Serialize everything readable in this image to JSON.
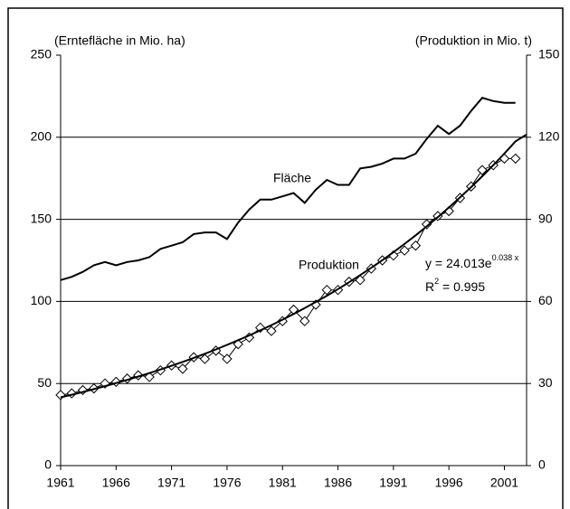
{
  "chart_data": {
    "type": "line",
    "y_label": "(Erntefläche in Mio. ha)",
    "y2_label": "(Produktion in Mio. t)",
    "x": [
      1961,
      1962,
      1963,
      1964,
      1965,
      1966,
      1967,
      1968,
      1969,
      1970,
      1971,
      1972,
      1973,
      1974,
      1975,
      1976,
      1977,
      1978,
      1979,
      1980,
      1981,
      1982,
      1983,
      1984,
      1985,
      1986,
      1987,
      1988,
      1989,
      1990,
      1991,
      1992,
      1993,
      1994,
      1995,
      1996,
      1997,
      1998,
      1999,
      2000,
      2001,
      2002,
      2003
    ],
    "series": [
      {
        "name": "Fläche",
        "color": "#000000",
        "axis": "y",
        "marker": "none",
        "values": [
          113,
          115,
          118,
          122,
          124,
          122,
          124,
          125,
          127,
          132,
          134,
          136,
          141,
          142,
          142,
          138,
          148,
          156,
          162,
          162,
          164,
          166,
          160,
          168,
          174,
          171,
          171,
          181,
          182,
          184,
          187,
          187,
          190,
          199,
          207,
          202,
          207,
          216,
          224,
          222,
          221,
          221,
          null
        ]
      },
      {
        "name": "Produktion",
        "color": "#000000",
        "axis": "y2",
        "marker": "diamond",
        "values": [
          25.8,
          26.4,
          27.6,
          28.2,
          30,
          30.6,
          31.8,
          33,
          32.4,
          34.8,
          36.6,
          35.4,
          39.6,
          39,
          42,
          39,
          44.4,
          46.8,
          50.4,
          49.2,
          52.8,
          57,
          52.8,
          58.8,
          64.2,
          64.2,
          67.2,
          67.8,
          72,
          75,
          76.8,
          78.6,
          80.4,
          88.2,
          91.2,
          93,
          97.8,
          102,
          108,
          109.8,
          112.2,
          112.2,
          null
        ]
      },
      {
        "color": "#000000",
        "axis": "y2",
        "marker": "none",
        "values": [
          24.94,
          25.91,
          26.91,
          27.95,
          29.04,
          30.16,
          31.33,
          32.54,
          33.8,
          35.11,
          36.47,
          37.89,
          39.36,
          40.88,
          42.46,
          44.11,
          45.82,
          47.59,
          49.44,
          51.35,
          53.34,
          55.41,
          57.56,
          59.79,
          62.09,
          64.5,
          67,
          69.6,
          72.29,
          75.08,
          78,
          81.02,
          84.16,
          87.41,
          90.79,
          94.32,
          97.98,
          101.77,
          105.72,
          109.79,
          114.05,
          118.47,
          121
        ]
      }
    ],
    "equation": {
      "base": "y = 24.013e",
      "exponent": "0.038 x"
    },
    "r2": {
      "base": "R",
      "exponent": "2",
      "rest": " = 0.995"
    },
    "xlim": [
      1961,
      2003
    ],
    "xticks": [
      1961,
      1966,
      1971,
      1976,
      1981,
      1986,
      1991,
      1996,
      2001
    ],
    "ylim": [
      0,
      250
    ],
    "yticks": [
      0,
      50,
      100,
      150,
      200,
      250
    ],
    "y2lim": [
      0,
      150
    ],
    "y2ticks": [
      0,
      30,
      60,
      90,
      120,
      150
    ],
    "grid": true
  }
}
